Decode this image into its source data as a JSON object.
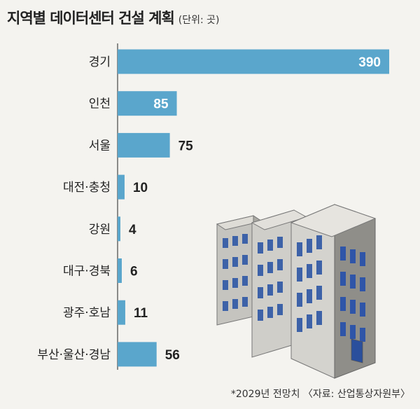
{
  "title": "지역별 데이터센터 건설 계획",
  "unit": "(단위: 곳)",
  "source": "*2029년 전망치 〈자료: 산업통상자원부〉",
  "chart_data": {
    "type": "bar",
    "orientation": "horizontal",
    "categories": [
      "경기",
      "인천",
      "서울",
      "대전·충청",
      "강원",
      "대구·경북",
      "광주·호남",
      "부산·울산·경남"
    ],
    "values": [
      390,
      85,
      75,
      10,
      4,
      6,
      11,
      56
    ],
    "data_labels": [
      "390",
      "85",
      "75",
      "10",
      "4",
      "6",
      "11",
      "56"
    ],
    "xlim": [
      0,
      390
    ],
    "bar_color": "#5aa6cc",
    "grid": false
  }
}
